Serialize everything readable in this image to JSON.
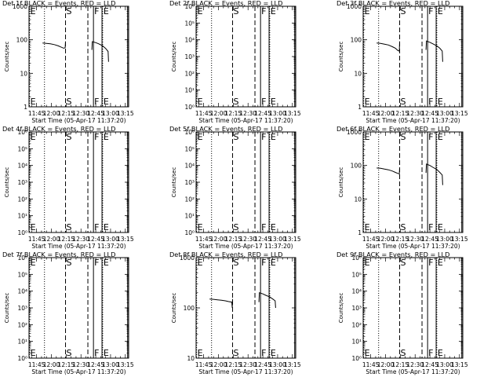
{
  "figure": {
    "xlabel": "Start Time (05-Apr-17 11:37:20)",
    "ylabel": "Counts/sec"
  },
  "chart_data": [
    {
      "type": "line",
      "title": "Det 1f BLACK = Events, RED = LLD",
      "xticks": [
        "11:45",
        "12:00",
        "12:15",
        "12:30",
        "12:45",
        "13:00",
        "13:15"
      ],
      "xlim": [
        "11:37:20",
        "13:18:20"
      ],
      "y_scale": "log",
      "ylim": [
        1,
        1000
      ],
      "yticks": [
        "1",
        "10",
        "100",
        "1000"
      ],
      "markers": [
        {
          "x": "11:37:50",
          "style": "dotted",
          "label": "E"
        },
        {
          "x": "11:53:00",
          "style": "dotted"
        },
        {
          "x": "12:14:20",
          "style": "dashed",
          "label": "S"
        },
        {
          "x": "12:37:00",
          "style": "dashed"
        },
        {
          "x": "12:42:40",
          "style": "solid",
          "label": "F"
        },
        {
          "x": "12:51:20",
          "style": "solid"
        },
        {
          "x": "12:52:00",
          "style": "dotted",
          "label": "E"
        },
        {
          "x": "13:17:20",
          "style": "solid"
        }
      ],
      "series": [
        {
          "values": [
            {
              "x": "11:51:00",
              "y": 80
            },
            {
              "x": "11:55:00",
              "y": 78
            },
            {
              "x": "11:59:00",
              "y": 76
            },
            {
              "x": "12:03:00",
              "y": 72
            },
            {
              "x": "12:07:00",
              "y": 66
            },
            {
              "x": "12:10:00",
              "y": 60
            },
            {
              "x": "12:12:30",
              "y": 56
            },
            {
              "x": "12:14:00",
              "y": 58
            },
            {
              "x": "12:14:20",
              "y": 90
            }
          ]
        },
        {
          "values": [
            {
              "x": "12:41:00",
              "y": 50
            },
            {
              "x": "12:41:30",
              "y": 88
            },
            {
              "x": "12:45:00",
              "y": 82
            },
            {
              "x": "12:48:00",
              "y": 76
            },
            {
              "x": "12:52:00",
              "y": 66
            },
            {
              "x": "12:55:00",
              "y": 55
            },
            {
              "x": "12:57:30",
              "y": 45
            },
            {
              "x": "12:58:00",
              "y": 22
            }
          ]
        }
      ]
    },
    {
      "type": "line",
      "title": "Det 2f BLACK = Events, RED = LLD",
      "xticks": [
        "11:45",
        "12:00",
        "12:15",
        "12:30",
        "12:45",
        "13:00",
        "13:15"
      ],
      "xlim": [
        "11:37:20",
        "13:18:20"
      ],
      "y_scale": "log",
      "ylim": [
        1,
        1000000
      ],
      "yticks": [
        "10⁰",
        "10¹",
        "10²",
        "10³",
        "10⁴",
        "10⁵",
        "10⁶"
      ],
      "markers": [
        {
          "x": "11:37:50",
          "style": "dotted",
          "label": "E"
        },
        {
          "x": "11:53:00",
          "style": "dotted"
        },
        {
          "x": "12:14:20",
          "style": "dashed",
          "label": "S"
        },
        {
          "x": "12:37:00",
          "style": "dashed"
        },
        {
          "x": "12:42:40",
          "style": "solid",
          "label": "F"
        },
        {
          "x": "12:51:20",
          "style": "solid"
        },
        {
          "x": "12:52:00",
          "style": "dotted",
          "label": "E"
        },
        {
          "x": "13:17:20",
          "style": "solid"
        }
      ],
      "series": []
    },
    {
      "type": "line",
      "title": "Det 3f BLACK = Events, RED = LLD",
      "xticks": [
        "11:45",
        "12:00",
        "12:15",
        "12:30",
        "12:45",
        "13:00",
        "13:15"
      ],
      "xlim": [
        "11:37:20",
        "13:18:20"
      ],
      "y_scale": "log",
      "ylim": [
        1,
        1000
      ],
      "yticks": [
        "1",
        "10",
        "100",
        "1000"
      ],
      "markers": [
        {
          "x": "11:37:50",
          "style": "dotted",
          "label": "E"
        },
        {
          "x": "11:53:00",
          "style": "dotted"
        },
        {
          "x": "12:14:20",
          "style": "dashed",
          "label": "S"
        },
        {
          "x": "12:37:00",
          "style": "dashed"
        },
        {
          "x": "12:42:40",
          "style": "solid",
          "label": "F"
        },
        {
          "x": "12:51:20",
          "style": "solid"
        },
        {
          "x": "12:52:00",
          "style": "dotted",
          "label": "E"
        },
        {
          "x": "13:17:20",
          "style": "solid"
        }
      ],
      "series": [
        {
          "values": [
            {
              "x": "11:51:00",
              "y": 80
            },
            {
              "x": "11:55:00",
              "y": 78
            },
            {
              "x": "11:59:00",
              "y": 74
            },
            {
              "x": "12:03:00",
              "y": 70
            },
            {
              "x": "12:07:00",
              "y": 62
            },
            {
              "x": "12:10:00",
              "y": 56
            },
            {
              "x": "12:12:30",
              "y": 48
            },
            {
              "x": "12:14:00",
              "y": 46
            },
            {
              "x": "12:14:20",
              "y": 90
            }
          ]
        },
        {
          "values": [
            {
              "x": "12:41:00",
              "y": 50
            },
            {
              "x": "12:41:30",
              "y": 92
            },
            {
              "x": "12:45:00",
              "y": 84
            },
            {
              "x": "12:48:00",
              "y": 76
            },
            {
              "x": "12:52:00",
              "y": 66
            },
            {
              "x": "12:55:00",
              "y": 56
            },
            {
              "x": "12:57:30",
              "y": 46
            },
            {
              "x": "12:58:00",
              "y": 22
            }
          ]
        }
      ]
    },
    {
      "type": "line",
      "title": "Det 4f BLACK = Events, RED = LLD",
      "xticks": [
        "11:45",
        "12:00",
        "12:15",
        "12:30",
        "12:45",
        "13:00",
        "13:15"
      ],
      "xlim": [
        "11:37:20",
        "13:18:20"
      ],
      "y_scale": "log",
      "ylim": [
        1,
        1000000
      ],
      "yticks": [
        "10⁰",
        "10¹",
        "10²",
        "10³",
        "10⁴",
        "10⁵",
        "10⁶"
      ],
      "markers": [
        {
          "x": "11:37:50",
          "style": "dotted",
          "label": "E"
        },
        {
          "x": "11:53:00",
          "style": "dotted"
        },
        {
          "x": "12:14:20",
          "style": "dashed",
          "label": "S"
        },
        {
          "x": "12:37:00",
          "style": "dashed"
        },
        {
          "x": "12:42:40",
          "style": "solid",
          "label": "F"
        },
        {
          "x": "12:51:20",
          "style": "solid"
        },
        {
          "x": "12:52:00",
          "style": "dotted",
          "label": "E"
        },
        {
          "x": "13:17:20",
          "style": "solid"
        }
      ],
      "series": []
    },
    {
      "type": "line",
      "title": "Det 5f BLACK = Events, RED = LLD",
      "xticks": [
        "11:45",
        "12:00",
        "12:15",
        "12:30",
        "12:45",
        "13:00",
        "13:15"
      ],
      "xlim": [
        "11:37:20",
        "13:18:20"
      ],
      "y_scale": "log",
      "ylim": [
        1,
        1000000
      ],
      "yticks": [
        "10⁰",
        "10¹",
        "10²",
        "10³",
        "10⁴",
        "10⁵",
        "10⁶"
      ],
      "markers": [
        {
          "x": "11:37:50",
          "style": "dotted",
          "label": "E"
        },
        {
          "x": "11:53:00",
          "style": "dotted"
        },
        {
          "x": "12:14:20",
          "style": "dashed",
          "label": "S"
        },
        {
          "x": "12:37:00",
          "style": "dashed"
        },
        {
          "x": "12:42:40",
          "style": "solid",
          "label": "F"
        },
        {
          "x": "12:51:20",
          "style": "solid"
        },
        {
          "x": "12:52:00",
          "style": "dotted",
          "label": "E"
        },
        {
          "x": "13:17:20",
          "style": "solid"
        }
      ],
      "series": []
    },
    {
      "type": "line",
      "title": "Det 6f BLACK = Events, RED = LLD",
      "xticks": [
        "11:45",
        "12:00",
        "12:15",
        "12:30",
        "12:45",
        "13:00",
        "13:15"
      ],
      "xlim": [
        "11:37:20",
        "13:18:20"
      ],
      "y_scale": "log",
      "ylim": [
        1,
        1000
      ],
      "yticks": [
        "1",
        "10",
        "100",
        "1000"
      ],
      "markers": [
        {
          "x": "11:37:50",
          "style": "dotted",
          "label": "E"
        },
        {
          "x": "11:53:00",
          "style": "dotted"
        },
        {
          "x": "12:14:20",
          "style": "dashed",
          "label": "S"
        },
        {
          "x": "12:37:00",
          "style": "dashed"
        },
        {
          "x": "12:42:40",
          "style": "solid",
          "label": "F"
        },
        {
          "x": "12:51:20",
          "style": "solid"
        },
        {
          "x": "12:52:00",
          "style": "dotted",
          "label": "E"
        },
        {
          "x": "13:17:20",
          "style": "solid"
        }
      ],
      "series": [
        {
          "values": [
            {
              "x": "11:51:00",
              "y": 84
            },
            {
              "x": "11:55:00",
              "y": 82
            },
            {
              "x": "11:59:00",
              "y": 78
            },
            {
              "x": "12:03:00",
              "y": 74
            },
            {
              "x": "12:07:00",
              "y": 68
            },
            {
              "x": "12:10:00",
              "y": 62
            },
            {
              "x": "12:12:30",
              "y": 58
            },
            {
              "x": "12:14:00",
              "y": 56
            },
            {
              "x": "12:14:20",
              "y": 86
            }
          ]
        },
        {
          "values": [
            {
              "x": "12:41:00",
              "y": 60
            },
            {
              "x": "12:41:30",
              "y": 110
            },
            {
              "x": "12:45:00",
              "y": 100
            },
            {
              "x": "12:48:00",
              "y": 88
            },
            {
              "x": "12:52:00",
              "y": 76
            },
            {
              "x": "12:55:00",
              "y": 62
            },
            {
              "x": "12:57:30",
              "y": 52
            },
            {
              "x": "12:58:00",
              "y": 26
            }
          ]
        }
      ]
    },
    {
      "type": "line",
      "title": "Det 7f BLACK = Events, RED = LLD",
      "xticks": [
        "11:45",
        "12:00",
        "12:15",
        "12:30",
        "12:45",
        "13:00",
        "13:15"
      ],
      "xlim": [
        "11:37:20",
        "13:18:20"
      ],
      "y_scale": "log",
      "ylim": [
        1,
        1000000
      ],
      "yticks": [
        "10⁰",
        "10¹",
        "10²",
        "10³",
        "10⁴",
        "10⁵",
        "10⁶"
      ],
      "markers": [
        {
          "x": "11:37:50",
          "style": "dotted",
          "label": "E"
        },
        {
          "x": "11:53:00",
          "style": "dotted"
        },
        {
          "x": "12:14:20",
          "style": "dashed",
          "label": "S"
        },
        {
          "x": "12:37:00",
          "style": "dashed"
        },
        {
          "x": "12:42:40",
          "style": "solid",
          "label": "F"
        },
        {
          "x": "12:51:20",
          "style": "solid"
        },
        {
          "x": "12:52:00",
          "style": "dotted",
          "label": "E"
        },
        {
          "x": "13:17:20",
          "style": "solid"
        }
      ],
      "series": []
    },
    {
      "type": "line",
      "title": "Det 8f BLACK = Events, RED = LLD",
      "xticks": [
        "11:45",
        "12:00",
        "12:15",
        "12:30",
        "12:45",
        "13:00",
        "13:15"
      ],
      "xlim": [
        "11:37:20",
        "13:18:20"
      ],
      "y_scale": "log",
      "ylim": [
        10,
        1000
      ],
      "yticks": [
        "10",
        "100",
        "1000"
      ],
      "markers": [
        {
          "x": "11:37:50",
          "style": "dotted",
          "label": "E"
        },
        {
          "x": "11:53:00",
          "style": "dotted"
        },
        {
          "x": "12:14:20",
          "style": "dashed",
          "label": "S"
        },
        {
          "x": "12:37:00",
          "style": "dashed"
        },
        {
          "x": "12:42:40",
          "style": "solid",
          "label": "F"
        },
        {
          "x": "12:51:20",
          "style": "solid"
        },
        {
          "x": "12:52:00",
          "style": "dotted",
          "label": "E"
        },
        {
          "x": "13:17:20",
          "style": "solid"
        }
      ],
      "series": [
        {
          "values": [
            {
              "x": "11:51:00",
              "y": 150
            },
            {
              "x": "11:55:00",
              "y": 148
            },
            {
              "x": "11:59:00",
              "y": 145
            },
            {
              "x": "12:03:00",
              "y": 142
            },
            {
              "x": "12:07:00",
              "y": 138
            },
            {
              "x": "12:10:00",
              "y": 134
            },
            {
              "x": "12:13:30",
              "y": 130
            },
            {
              "x": "12:14:00",
              "y": 100
            },
            {
              "x": "12:14:20",
              "y": 150
            }
          ]
        },
        {
          "values": [
            {
              "x": "12:41:00",
              "y": 130
            },
            {
              "x": "12:41:30",
              "y": 200
            },
            {
              "x": "12:45:00",
              "y": 190
            },
            {
              "x": "12:48:00",
              "y": 178
            },
            {
              "x": "12:52:00",
              "y": 165
            },
            {
              "x": "12:55:00",
              "y": 150
            },
            {
              "x": "12:57:30",
              "y": 138
            },
            {
              "x": "12:58:00",
              "y": 100
            }
          ]
        }
      ]
    },
    {
      "type": "line",
      "title": "Det 9f BLACK = Events, RED = LLD",
      "xticks": [
        "11:45",
        "12:00",
        "12:15",
        "12:30",
        "12:45",
        "13:00",
        "13:15"
      ],
      "xlim": [
        "11:37:20",
        "13:18:20"
      ],
      "y_scale": "log",
      "ylim": [
        1,
        1000000
      ],
      "yticks": [
        "10⁰",
        "10¹",
        "10²",
        "10³",
        "10⁴",
        "10⁵",
        "10⁶"
      ],
      "markers": [
        {
          "x": "11:37:50",
          "style": "dotted",
          "label": "E"
        },
        {
          "x": "11:53:00",
          "style": "dotted"
        },
        {
          "x": "12:14:20",
          "style": "dashed",
          "label": "S"
        },
        {
          "x": "12:37:00",
          "style": "dashed"
        },
        {
          "x": "12:42:40",
          "style": "solid",
          "label": "F"
        },
        {
          "x": "12:51:20",
          "style": "solid"
        },
        {
          "x": "12:52:00",
          "style": "dotted",
          "label": "E"
        },
        {
          "x": "13:17:20",
          "style": "solid"
        }
      ],
      "series": []
    }
  ]
}
